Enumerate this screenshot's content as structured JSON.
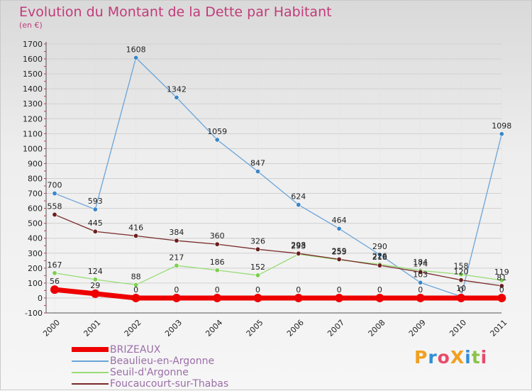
{
  "header": {
    "title": "Evolution du Montant de la Dette par Habitant",
    "unit": "(en €)"
  },
  "logo": {
    "text": "ProXiti",
    "colors": [
      "#f0a020",
      "#2f8fd6",
      "#e84b6a",
      "#f0a020",
      "#2f8fd6",
      "#8bc34a",
      "#e84b6a"
    ]
  },
  "chart_data": {
    "type": "line",
    "ylim": [
      -100,
      1700
    ],
    "yticks": [
      -100,
      0,
      100,
      200,
      300,
      400,
      500,
      600,
      700,
      800,
      900,
      1000,
      1100,
      1200,
      1300,
      1400,
      1500,
      1600,
      1700
    ],
    "categories": [
      "2000",
      "2001",
      "2002",
      "2003",
      "2004",
      "2005",
      "2006",
      "2007",
      "2008",
      "2009",
      "2010",
      "2011"
    ],
    "legend_position": "bottom-left",
    "series": [
      {
        "name": "BRIZEAUX",
        "color": "#ee0000",
        "width": 7,
        "values": [
          56,
          29,
          0,
          0,
          0,
          0,
          0,
          0,
          0,
          0,
          0,
          0
        ],
        "labels": [
          "56",
          "29",
          "0",
          "0",
          "0",
          "0",
          "0",
          "0",
          "0",
          "0",
          "0",
          "0"
        ]
      },
      {
        "name": "Beaulieu-en-Argonne",
        "color": "#6aa4d8",
        "width": 1.3,
        "values": [
          700,
          593,
          1608,
          1342,
          1059,
          847,
          624,
          464,
          290,
          103,
          10,
          1098
        ],
        "labels": [
          "700",
          "593",
          "1608",
          "1342",
          "1059",
          "847",
          "624",
          "464",
          "290",
          "103",
          "10",
          "1098"
        ]
      },
      {
        "name": "Seuil-d'Argonne",
        "color": "#99dd77",
        "width": 1.3,
        "values": [
          167,
          124,
          88,
          217,
          186,
          152,
          293,
          255,
          226,
          184,
          158,
          119
        ],
        "labels": [
          "167",
          "124",
          "88",
          "217",
          "186",
          "152",
          "293",
          "255",
          "226",
          "184",
          "158",
          "119"
        ]
      },
      {
        "name": "Foucaucourt-sur-Thabas",
        "color": "#7a2a2a",
        "width": 1.3,
        "values": [
          558,
          445,
          416,
          384,
          360,
          326,
          298,
          259,
          218,
          174,
          120,
          81
        ],
        "labels": [
          "558",
          "445",
          "416",
          "384",
          "360",
          "326",
          "298",
          "259",
          "218",
          "174",
          "120",
          "81"
        ]
      }
    ]
  }
}
